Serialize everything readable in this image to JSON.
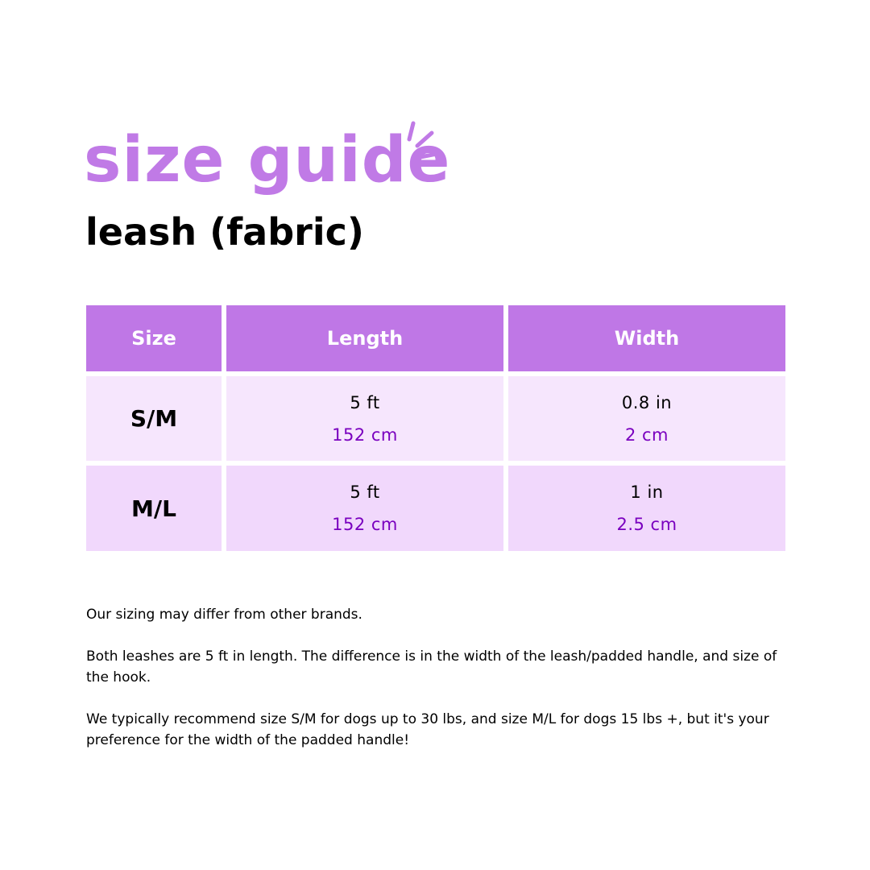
{
  "title": "size guide",
  "subtitle": "leash (fabric)",
  "colors": {
    "accent": "#bf77e6",
    "row_light": "#f6e6fd",
    "row_dark": "#f1d8fc",
    "metric_text": "#7a00bf"
  },
  "table": {
    "headers": [
      "Size",
      "Length",
      "Width"
    ],
    "rows": [
      {
        "size": "S/M",
        "length_imperial": "5 ft",
        "length_metric": "152 cm",
        "width_imperial": "0.8 in",
        "width_metric": "2 cm"
      },
      {
        "size": "M/L",
        "length_imperial": "5 ft",
        "length_metric": "152 cm",
        "width_imperial": "1 in",
        "width_metric": "2.5 cm"
      }
    ]
  },
  "notes": [
    "Our sizing may differ from other brands.",
    "Both leashes are 5 ft in length. The difference is in the width of the leash/padded handle, and size of the hook.",
    "We typically recommend size S/M for dogs up to 30 lbs, and size M/L for dogs 15 lbs +, but it's your preference for the width of the padded handle!"
  ]
}
